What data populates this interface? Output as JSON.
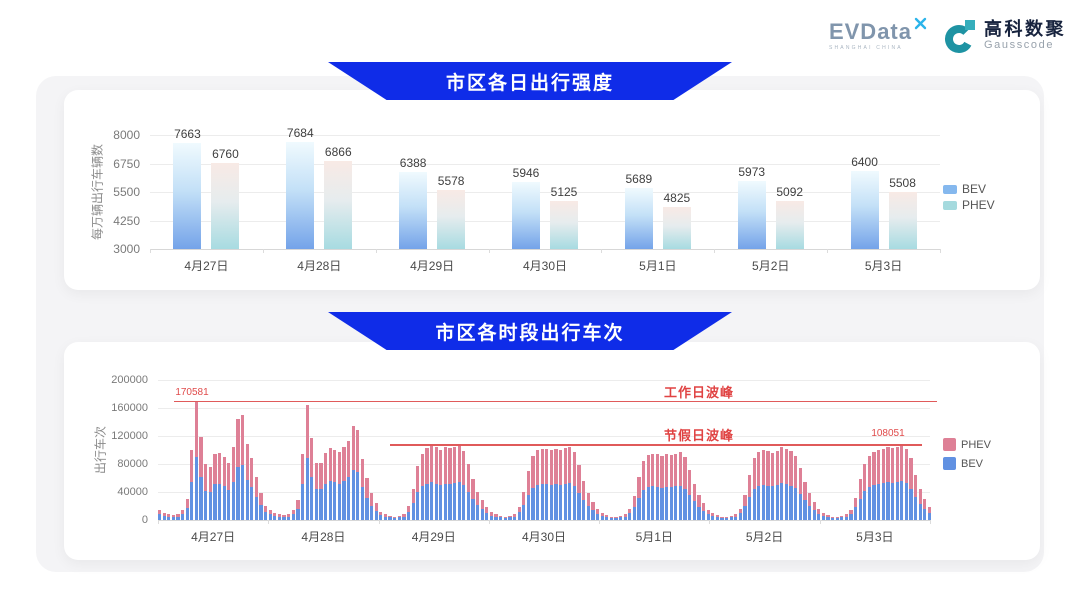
{
  "header": {
    "evdata": {
      "name": "EVData",
      "tagline": "SHANGHAI CHINA"
    },
    "gausscode": {
      "cn": "高科数聚",
      "en": "Gausscode"
    }
  },
  "icons": {
    "evdata_x": "x-mark",
    "gausscode_mark": "g-ring-with-square"
  },
  "colors": {
    "banner_blue": "#0f2ce8",
    "annotation_red": "#e04b4b",
    "bev_bottom": "#6191e2",
    "phev_bottom": "#de8096",
    "bev_legend_top": "#85b8ee",
    "phev_legend_top": "#a5dade",
    "panel_gray": "#f4f4f6"
  },
  "chart_data": [
    {
      "type": "bar",
      "title": "市区各日出行强度",
      "ylabel": "每万辆出行车辆数",
      "categories": [
        "4月27日",
        "4月28日",
        "4月29日",
        "4月30日",
        "5月1日",
        "5月2日",
        "5月3日"
      ],
      "series": [
        {
          "name": "BEV",
          "values": [
            7663,
            7684,
            6388,
            5946,
            5689,
            5973,
            6400
          ]
        },
        {
          "name": "PHEV",
          "values": [
            6760,
            6866,
            5578,
            5125,
            4825,
            5092,
            5508
          ]
        }
      ],
      "ylim": [
        3000,
        8000
      ],
      "yticks": [
        3000,
        4250,
        5500,
        6750,
        8000
      ],
      "legend": [
        "BEV",
        "PHEV"
      ],
      "legend_position": "right",
      "grid": true
    },
    {
      "type": "bar",
      "stacked": true,
      "title": "市区各时段出行车次",
      "ylabel": "出行车次",
      "categories": [
        "4月27日",
        "4月28日",
        "4月29日",
        "4月30日",
        "5月1日",
        "5月2日",
        "5月3日"
      ],
      "x_unit": "24 hourly bars per day",
      "ylim": [
        0,
        200000
      ],
      "yticks": [
        0,
        40000,
        80000,
        120000,
        160000,
        200000
      ],
      "legend": [
        "PHEV",
        "BEV"
      ],
      "legend_position": "right",
      "series": [
        {
          "name": "BEV",
          "color": "#6191e2",
          "values": [
            [
              9000,
              6000,
              5000,
              4000,
              5000,
              8000,
              17000,
              55000,
              90000,
              62000,
              42000,
              40000,
              51000,
              52000,
              48000,
              43000,
              55000,
              76000,
              79000,
              57000,
              47000,
              33000,
              21000,
              11000
            ],
            [
              8000,
              6000,
              5000,
              4000,
              5000,
              8000,
              16000,
              52000,
              88000,
              62000,
              44000,
              44000,
              52000,
              56000,
              54000,
              52000,
              56000,
              61000,
              72000,
              69000,
              47000,
              32000,
              20000,
              13000
            ],
            [
              7000,
              5000,
              4000,
              3000,
              4000,
              5000,
              12000,
              25000,
              40000,
              48000,
              52000,
              54000,
              52000,
              50000,
              52000,
              52000,
              53000,
              54000,
              50000,
              40000,
              30000,
              22000,
              16000,
              10000
            ],
            [
              6000,
              5000,
              4000,
              3000,
              4000,
              5000,
              11000,
              22000,
              36000,
              46000,
              50000,
              51000,
              51000,
              50000,
              51000,
              50000,
              52000,
              53000,
              49000,
              39000,
              28000,
              20000,
              14000,
              9000
            ],
            [
              6000,
              4000,
              3000,
              3000,
              4000,
              5000,
              10000,
              19000,
              32000,
              43000,
              47000,
              48000,
              47000,
              46000,
              47000,
              47000,
              48000,
              49000,
              45000,
              36000,
              27000,
              19000,
              13000,
              8000
            ],
            [
              6000,
              4000,
              3000,
              3000,
              4000,
              5000,
              10000,
              20000,
              33000,
              44000,
              49000,
              50000,
              49000,
              48000,
              50000,
              53000,
              51000,
              49000,
              46000,
              37000,
              28000,
              20000,
              14000,
              9000
            ],
            [
              6000,
              4000,
              3000,
              3000,
              4000,
              5000,
              9000,
              18000,
              30000,
              41000,
              47000,
              50000,
              52000,
              53000,
              54000,
              53000,
              54000,
              56000,
              53000,
              45000,
              33000,
              23000,
              16000,
              10000
            ]
          ]
        },
        {
          "name": "PHEV",
          "color": "#de8096",
          "values": [
            [
              6000,
              4000,
              3000,
              3000,
              4000,
              6000,
              13000,
              45000,
              80581,
              57000,
              38000,
              36000,
              44000,
              44000,
              42000,
              38000,
              49000,
              69000,
              71000,
              51000,
              41000,
              29000,
              17000,
              9000
            ],
            [
              6000,
              4000,
              3000,
              3000,
              4000,
              6000,
              12000,
              43000,
              77000,
              55000,
              38000,
              38000,
              44000,
              47000,
              46000,
              45000,
              48000,
              52000,
              62000,
              60000,
              40000,
              28000,
              18000,
              12000
            ],
            [
              5000,
              3000,
              2000,
              2000,
              2000,
              4000,
              8000,
              20000,
              37000,
              47000,
              51000,
              53000,
              52000,
              50000,
              52000,
              51000,
              52000,
              53000,
              49000,
              40000,
              28000,
              18000,
              12000,
              8000
            ],
            [
              5000,
              3000,
              2000,
              2000,
              2000,
              4000,
              7000,
              18000,
              34000,
              46000,
              50000,
              51000,
              50000,
              50000,
              50000,
              50000,
              51000,
              52000,
              48000,
              39000,
              28000,
              18000,
              12000,
              7000
            ],
            [
              4000,
              3000,
              2000,
              2000,
              2000,
              3000,
              6000,
              16000,
              30000,
              42000,
              46000,
              47000,
              47000,
              46000,
              47000,
              46000,
              47000,
              48000,
              45000,
              36000,
              25000,
              17000,
              11000,
              7000
            ],
            [
              4000,
              3000,
              2000,
              2000,
              2000,
              3000,
              6000,
              16000,
              31000,
              44000,
              48000,
              50000,
              49000,
              48000,
              49000,
              51000,
              50000,
              49000,
              46000,
              37000,
              26000,
              18000,
              12000,
              7000
            ],
            [
              4000,
              3000,
              2000,
              2000,
              2000,
              3000,
              6000,
              14000,
              28000,
              39000,
              45000,
              47000,
              48000,
              49000,
              50000,
              50000,
              51000,
              52051,
              49000,
              43000,
              31000,
              21000,
              14000,
              8000
            ]
          ]
        }
      ],
      "annotations": [
        {
          "label": "工作日波峰",
          "value": 170581,
          "value_label": "170581",
          "color": "#e04b4b"
        },
        {
          "label": "节假日波峰",
          "value": 108051,
          "value_label": "108051",
          "color": "#e04b4b"
        }
      ]
    }
  ]
}
